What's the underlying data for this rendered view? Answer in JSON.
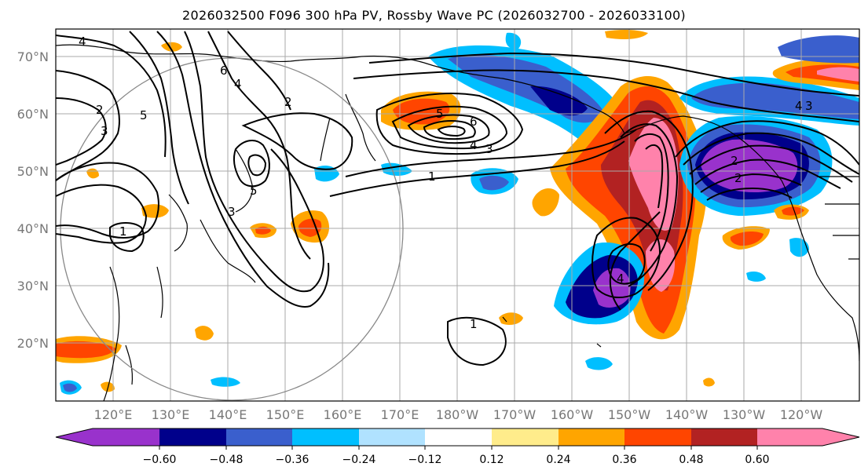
{
  "title": "2026032500 F096 300 hPa PV, Rossby Wave PC (2026032700 - 2026033100)",
  "chart_data": {
    "type": "map-contour",
    "title": "2026032500 F096 300 hPa PV, Rossby Wave PC (2026032700 - 2026033100)",
    "lat_ticks": [
      "70°N",
      "60°N",
      "50°N",
      "40°N",
      "30°N",
      "20°N"
    ],
    "lon_ticks": [
      "120°E",
      "130°E",
      "140°E",
      "150°E",
      "160°E",
      "170°E",
      "180°W",
      "170°W",
      "160°W",
      "150°W",
      "140°W",
      "130°W",
      "120°W"
    ],
    "lat_range": [
      10,
      75
    ],
    "lon_range_east": [
      110,
      250
    ],
    "colorbar": {
      "ticks": [
        "−0.60",
        "−0.48",
        "−0.36",
        "−0.24",
        "−0.12",
        "0.12",
        "0.24",
        "0.36",
        "0.48",
        "0.60"
      ],
      "colors": [
        "#9932cc",
        "#00008b",
        "#3a5fcd",
        "#00bfff",
        "#b0e2ff",
        "#ffffff",
        "#ffec8b",
        "#ffa500",
        "#ff4500",
        "#b22222",
        "#ff82ab"
      ]
    },
    "contour_labels": [
      "4",
      "6",
      "4",
      "2",
      "2",
      "3",
      "5",
      "5",
      "6",
      "4",
      "3",
      "1",
      "1",
      "5",
      "3",
      "1",
      "4",
      "3",
      "2",
      "2",
      "4"
    ]
  }
}
